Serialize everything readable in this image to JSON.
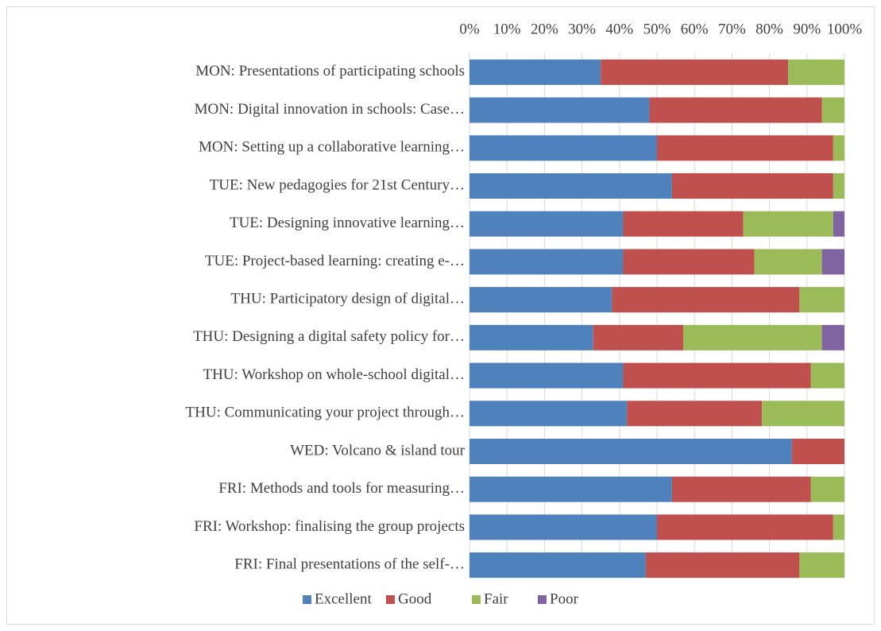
{
  "chart_data": {
    "type": "stacked-bar-horizontal",
    "categories": [
      "MON: Presentations of participating schools",
      "MON: Digital innovation in schools: Case…",
      "MON: Setting up a collaborative learning…",
      "TUE: New pedagogies for 21st Century…",
      "TUE: Designing innovative learning…",
      "TUE: Project-based learning: creating e-…",
      "THU: Participatory design of digital…",
      "THU: Designing a digital safety policy for…",
      "THU: Workshop on whole-school digital…",
      "THU: Communicating your project through…",
      "WED: Volcano & island tour",
      "FRI: Methods and tools for measuring…",
      "FRI: Workshop: finalising the group projects",
      "FRI: Final presentations of the self-…"
    ],
    "series": [
      {
        "name": "Excellent",
        "color": "#4f81bd",
        "values": [
          35,
          48,
          50,
          54,
          41,
          41,
          38,
          33,
          41,
          42,
          86,
          54,
          50,
          47
        ]
      },
      {
        "name": "Good",
        "color": "#c0504d",
        "values": [
          50,
          46,
          47,
          43,
          32,
          35,
          50,
          24,
          50,
          36,
          14,
          37,
          47,
          41
        ]
      },
      {
        "name": "Fair",
        "color": "#9bbb59",
        "values": [
          15,
          6,
          3,
          3,
          24,
          18,
          12,
          37,
          9,
          22,
          0,
          9,
          3,
          12
        ]
      },
      {
        "name": "Poor",
        "color": "#8064a2",
        "values": [
          0,
          0,
          0,
          0,
          3,
          6,
          0,
          6,
          0,
          0,
          0,
          0,
          0,
          0
        ]
      }
    ],
    "xlim": [
      0,
      100
    ],
    "xticks": [
      {
        "value": 0,
        "label": "0%"
      },
      {
        "value": 10,
        "label": "10%"
      },
      {
        "value": 20,
        "label": "20%"
      },
      {
        "value": 30,
        "label": "30%"
      },
      {
        "value": 40,
        "label": "40%"
      },
      {
        "value": 50,
        "label": "50%"
      },
      {
        "value": 60,
        "label": "60%"
      },
      {
        "value": 70,
        "label": "70%"
      },
      {
        "value": 80,
        "label": "80%"
      },
      {
        "value": 90,
        "label": "90%"
      },
      {
        "value": 100,
        "label": "100%"
      }
    ],
    "grid": true,
    "legend": "bottom"
  }
}
